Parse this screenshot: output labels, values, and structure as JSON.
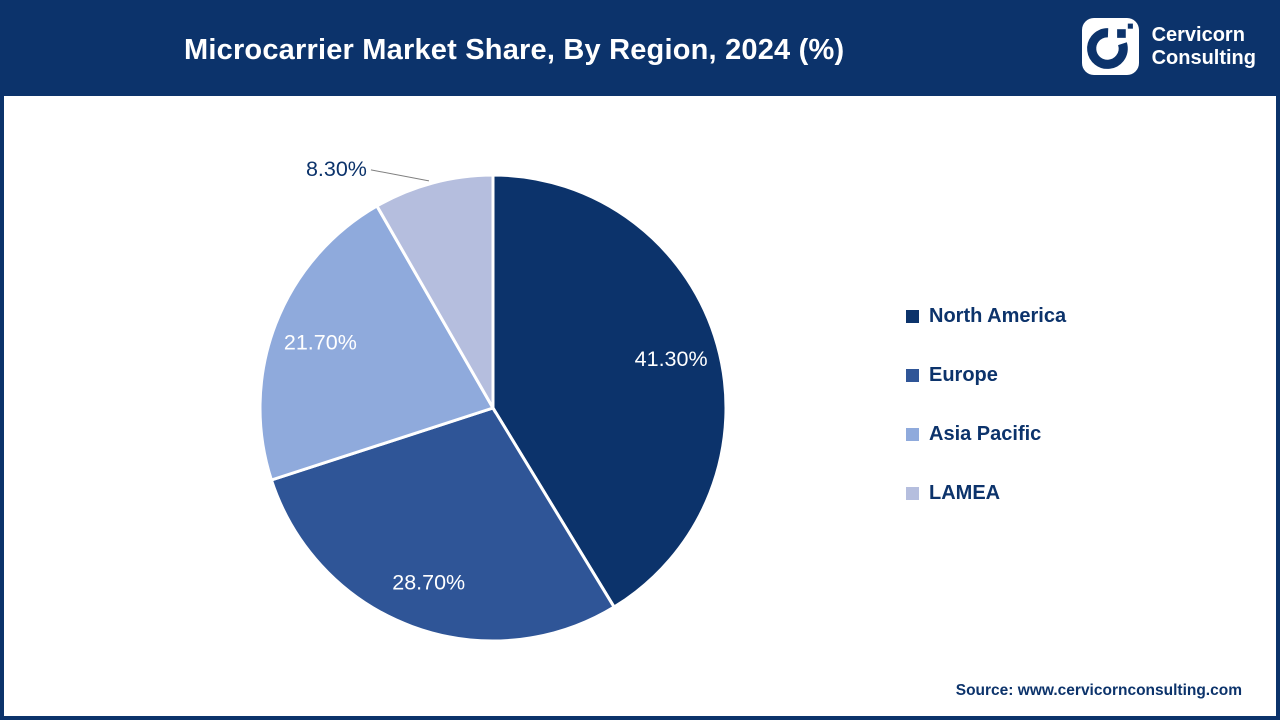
{
  "header": {
    "title": "Microcarrier Market Share, By Region, 2024 (%)",
    "brand": {
      "line1": "Cervicorn",
      "line2": "Consulting"
    }
  },
  "chart_data": {
    "type": "pie",
    "title": "Microcarrier Market Share, By Region, 2024 (%)",
    "categories": [
      "North America",
      "Europe",
      "Asia Pacific",
      "LAMEA"
    ],
    "values": [
      41.3,
      28.7,
      21.7,
      8.3
    ],
    "labels": [
      "41.30%",
      "28.70%",
      "21.70%",
      "8.30%"
    ],
    "colors": [
      "#0C336B",
      "#2F5597",
      "#8FAADC",
      "#B5BEDE"
    ],
    "start_angle_deg": 0,
    "direction": "clockwise",
    "legend_position": "right",
    "label_color_inside": "#FFFFFF",
    "label_color_outside": "#0C336B",
    "leader_line_color": "#7F7F7F"
  },
  "footer": {
    "source": "Source: www.cervicornconsulting.com"
  }
}
